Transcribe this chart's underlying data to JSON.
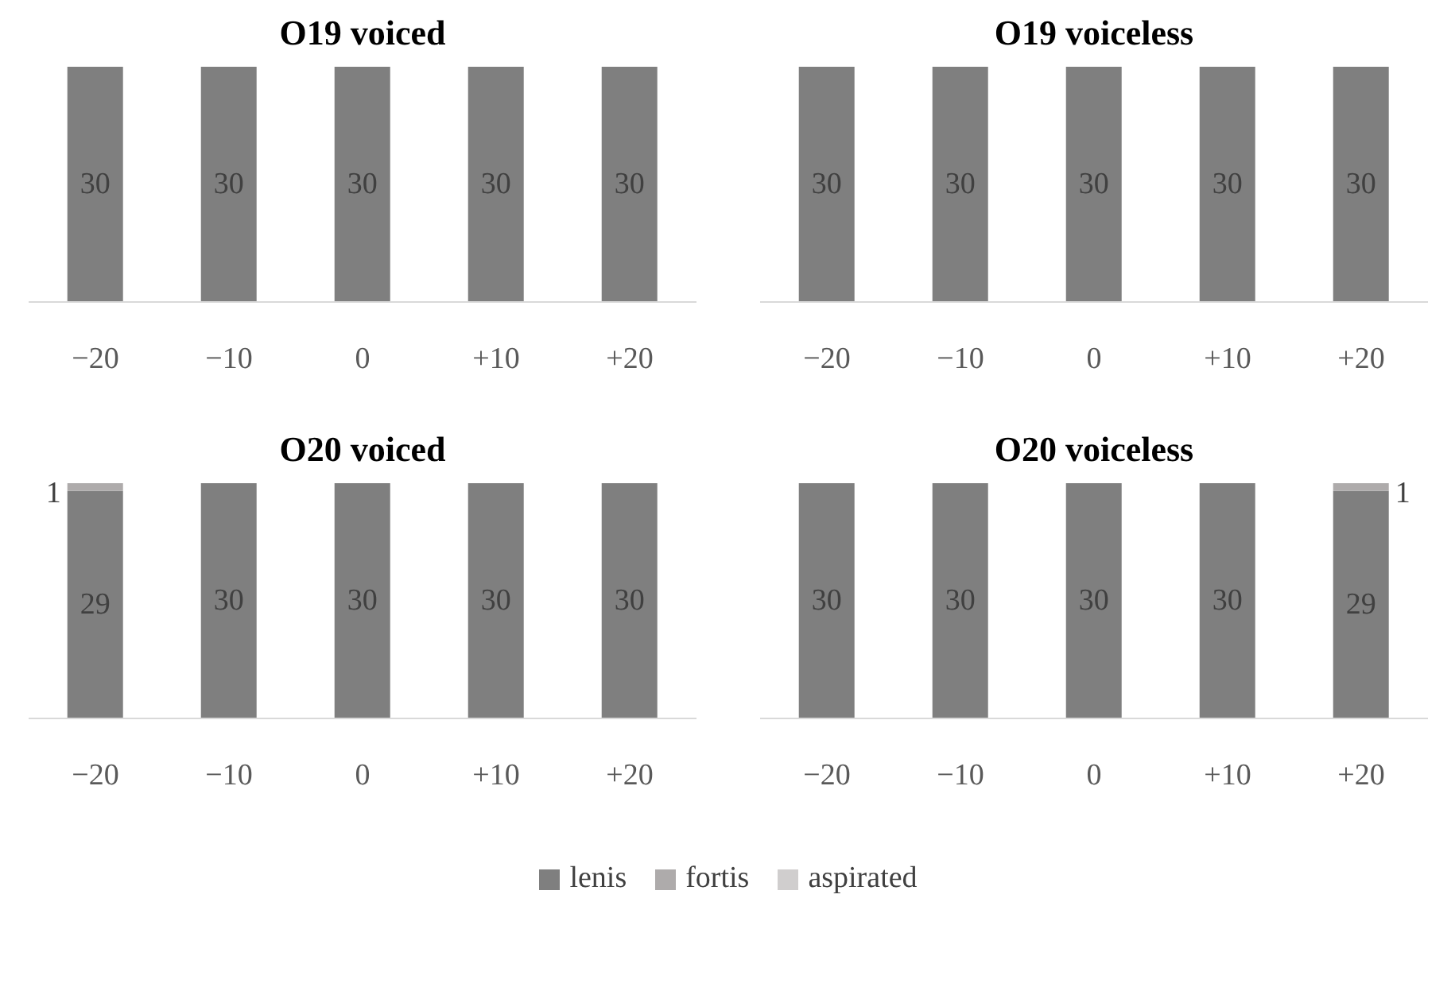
{
  "chart_data": [
    {
      "type": "bar",
      "title": "O19 voiced",
      "stacked": true,
      "categories": [
        "−20",
        "−10",
        "0",
        "+10",
        "+20"
      ],
      "grid": false,
      "series": [
        {
          "color": "#7f7f7f",
          "values": [
            30,
            30,
            30,
            30,
            30
          ],
          "value_labels": [
            "30",
            "30",
            "30",
            "30",
            "30"
          ]
        },
        {
          "color": "#aeabab",
          "values": [
            0,
            0,
            0,
            0,
            0
          ],
          "value_labels": [
            null,
            null,
            null,
            null,
            null
          ]
        },
        {
          "color": "#d0cece",
          "values": [
            0,
            0,
            0,
            0,
            0
          ],
          "value_labels": [
            null,
            null,
            null,
            null,
            null
          ]
        }
      ]
    },
    {
      "type": "bar",
      "title": "O19 voiceless",
      "stacked": true,
      "categories": [
        "−20",
        "−10",
        "0",
        "+10",
        "+20"
      ],
      "grid": false,
      "series": [
        {
          "color": "#7f7f7f",
          "values": [
            30,
            30,
            30,
            30,
            30
          ],
          "value_labels": [
            "30",
            "30",
            "30",
            "30",
            "30"
          ]
        },
        {
          "color": "#aeabab",
          "values": [
            0,
            0,
            0,
            0,
            0
          ],
          "value_labels": [
            null,
            null,
            null,
            null,
            null
          ]
        },
        {
          "color": "#d0cece",
          "values": [
            0,
            0,
            0,
            0,
            0
          ],
          "value_labels": [
            null,
            null,
            null,
            null,
            null
          ]
        }
      ]
    },
    {
      "type": "bar",
      "title": "O20 voiced",
      "stacked": true,
      "categories": [
        "−20",
        "−10",
        "0",
        "+10",
        "+20"
      ],
      "grid": false,
      "series": [
        {
          "color": "#7f7f7f",
          "values": [
            29,
            30,
            30,
            30,
            30
          ],
          "value_labels": [
            "29",
            "30",
            "30",
            "30",
            "30"
          ]
        },
        {
          "color": "#aeabab",
          "values": [
            1,
            0,
            0,
            0,
            0
          ],
          "value_labels": [
            "1",
            null,
            null,
            null,
            null
          ]
        },
        {
          "color": "#d0cece",
          "values": [
            0,
            0,
            0,
            0,
            0
          ],
          "value_labels": [
            null,
            null,
            null,
            null,
            null
          ]
        }
      ]
    },
    {
      "type": "bar",
      "title": "O20 voiceless",
      "stacked": true,
      "categories": [
        "−20",
        "−10",
        "0",
        "+10",
        "+20"
      ],
      "grid": false,
      "legend": "bottom",
      "series": [
        {
          "name": "lenis",
          "color": "#7f7f7f",
          "values": [
            30,
            30,
            30,
            30,
            29
          ],
          "value_labels": [
            "30",
            "30",
            "30",
            "30",
            "29"
          ]
        },
        {
          "name": "fortis",
          "color": "#aeabab",
          "values": [
            0,
            0,
            0,
            0,
            1
          ],
          "value_labels": [
            null,
            null,
            null,
            null,
            "1"
          ]
        },
        {
          "name": "aspirated",
          "color": "#d0cece",
          "values": [
            0,
            0,
            0,
            0,
            0
          ],
          "value_labels": [
            null,
            null,
            null,
            null,
            null
          ]
        }
      ]
    }
  ]
}
